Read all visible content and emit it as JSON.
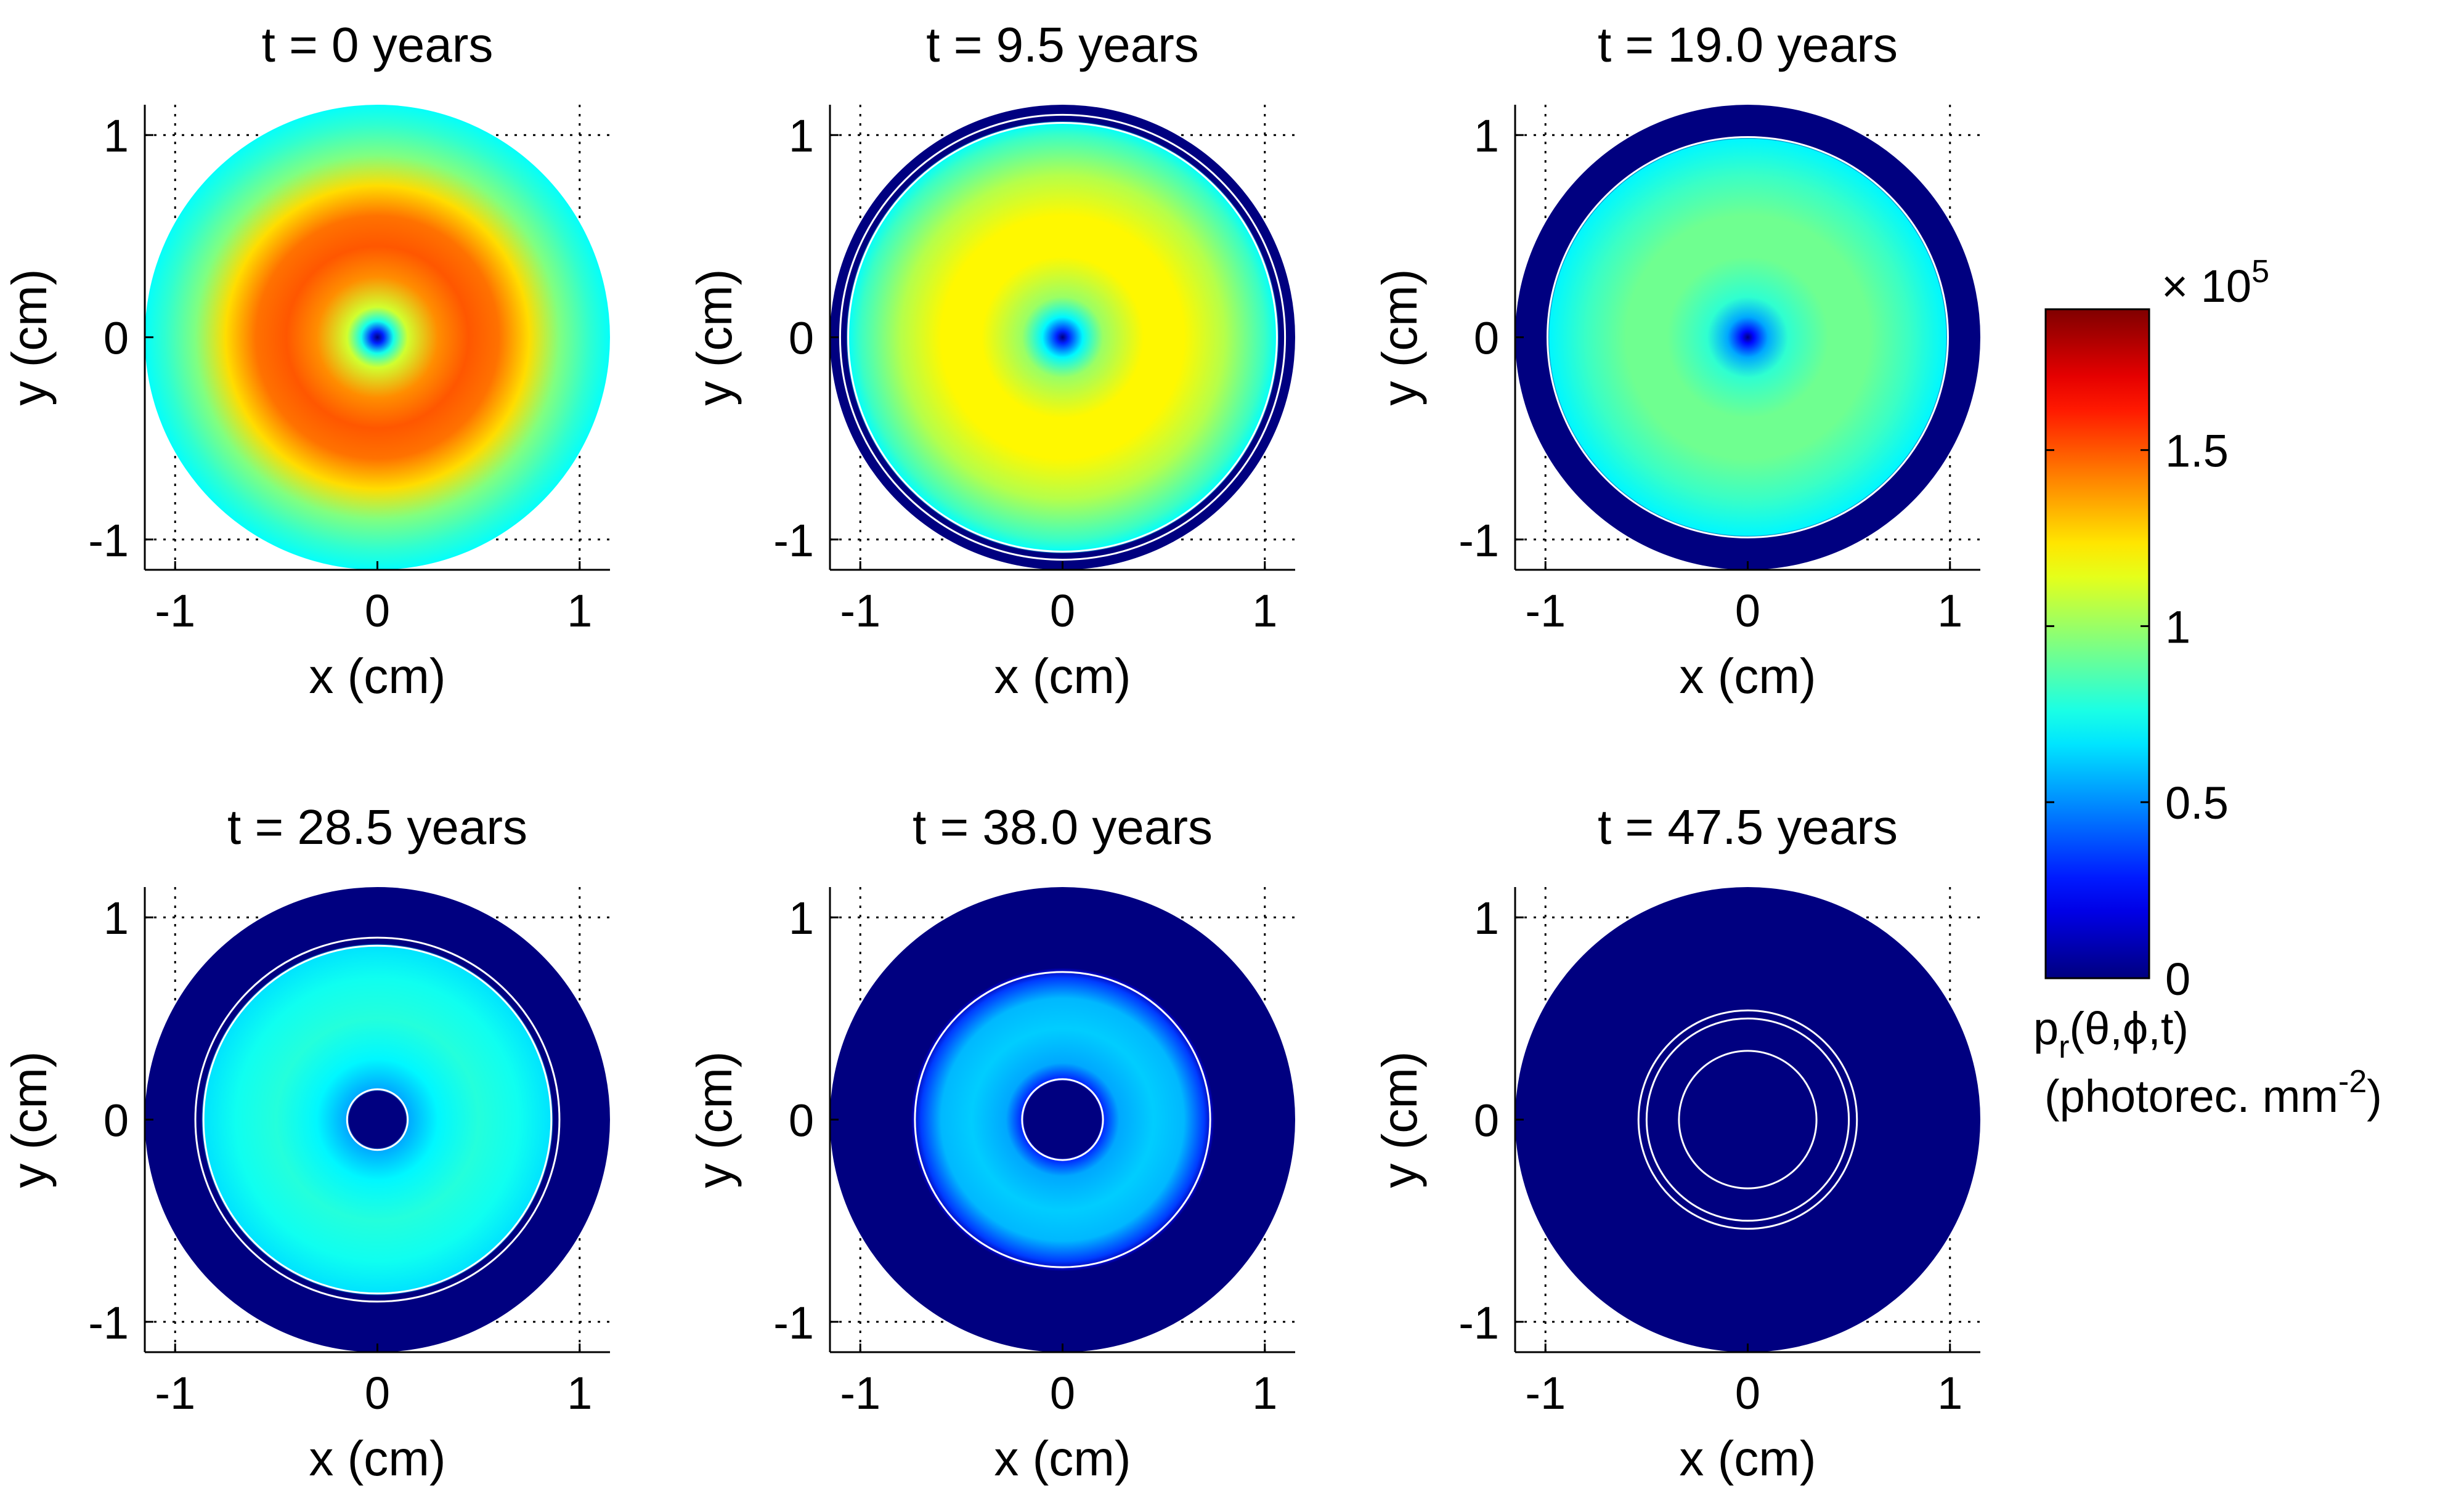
{
  "figure": {
    "colorbar": {
      "multiplier_label": "× 10",
      "multiplier_exponent": "5",
      "tick_labels": [
        "0",
        "0.5",
        "1",
        "1.5"
      ],
      "ticks": [
        0,
        0.5,
        1,
        1.5
      ],
      "range": [
        0,
        1.9
      ],
      "colormap": "jet",
      "label_line1_main": "p",
      "label_line1_sub": "r",
      "label_line1_rest": "(θ,ϕ,t)",
      "label_line2_main": "(photorec. mm",
      "label_line2_sup": "-2",
      "label_line2_end": ")"
    },
    "colors": {
      "background": "#ffffff",
      "outside_disk": "#00008f",
      "contour": "#ffffff"
    }
  },
  "chart_data": [
    {
      "type": "heatmap",
      "title": "t = 0 years",
      "xlabel": "x (cm)",
      "ylabel": "y (cm)",
      "xlim": [
        -1.15,
        1.15
      ],
      "ylim": [
        -1.15,
        1.15
      ],
      "xticks": [
        -1,
        0,
        1
      ],
      "yticks": [
        -1,
        0,
        1
      ],
      "xtick_labels": [
        "-1",
        "0",
        "1"
      ],
      "ytick_labels": [
        "-1",
        "0",
        "1"
      ],
      "grid": true,
      "disk_radius": 1.15,
      "radial_profile": [
        [
          0,
          0.0
        ],
        [
          0.03,
          0.3
        ],
        [
          0.08,
          0.75
        ],
        [
          0.15,
          1.1
        ],
        [
          0.3,
          1.4
        ],
        [
          0.45,
          1.5
        ],
        [
          0.6,
          1.45
        ],
        [
          0.75,
          1.25
        ],
        [
          0.9,
          0.95
        ],
        [
          1.05,
          0.8
        ],
        [
          1.15,
          0.72
        ]
      ],
      "contour_radii": []
    },
    {
      "type": "heatmap",
      "title": "t = 9.5 years",
      "xlabel": "x (cm)",
      "ylabel": "y (cm)",
      "xlim": [
        -1.15,
        1.15
      ],
      "ylim": [
        -1.15,
        1.15
      ],
      "xticks": [
        -1,
        0,
        1
      ],
      "yticks": [
        -1,
        0,
        1
      ],
      "xtick_labels": [
        "-1",
        "0",
        "1"
      ],
      "ytick_labels": [
        "-1",
        "0",
        "1"
      ],
      "grid": true,
      "disk_radius": 1.15,
      "radial_profile": [
        [
          0,
          0.0
        ],
        [
          0.03,
          0.3
        ],
        [
          0.1,
          0.7
        ],
        [
          0.2,
          1.0
        ],
        [
          0.4,
          1.2
        ],
        [
          0.6,
          1.2
        ],
        [
          0.8,
          1.05
        ],
        [
          1.0,
          0.82
        ],
        [
          1.06,
          0.72
        ],
        [
          1.07,
          0.0
        ],
        [
          1.15,
          0.0
        ]
      ],
      "contour_radii": [
        1.06,
        1.1
      ]
    },
    {
      "type": "heatmap",
      "title": "t = 19.0 years",
      "xlabel": "x (cm)",
      "ylabel": "y (cm)",
      "xlim": [
        -1.15,
        1.15
      ],
      "ylim": [
        -1.15,
        1.15
      ],
      "xticks": [
        -1,
        0,
        1
      ],
      "yticks": [
        -1,
        0,
        1
      ],
      "xtick_labels": [
        "-1",
        "0",
        "1"
      ],
      "ytick_labels": [
        "-1",
        "0",
        "1"
      ],
      "grid": true,
      "disk_radius": 1.15,
      "radial_profile": [
        [
          0,
          0.0
        ],
        [
          0.03,
          0.25
        ],
        [
          0.1,
          0.55
        ],
        [
          0.2,
          0.8
        ],
        [
          0.4,
          0.92
        ],
        [
          0.6,
          0.92
        ],
        [
          0.8,
          0.82
        ],
        [
          0.98,
          0.7
        ],
        [
          0.99,
          0.0
        ],
        [
          1.15,
          0.0
        ]
      ],
      "contour_radii": [
        0.99
      ]
    },
    {
      "type": "heatmap",
      "title": "t = 28.5 years",
      "xlabel": "x (cm)",
      "ylabel": "y (cm)",
      "xlim": [
        -1.15,
        1.15
      ],
      "ylim": [
        -1.15,
        1.15
      ],
      "xticks": [
        -1,
        0,
        1
      ],
      "yticks": [
        -1,
        0,
        1
      ],
      "xtick_labels": [
        "-1",
        "0",
        "1"
      ],
      "ytick_labels": [
        "-1",
        "0",
        "1"
      ],
      "grid": true,
      "disk_radius": 1.15,
      "radial_profile": [
        [
          0,
          0.0
        ],
        [
          0.14,
          0.0
        ],
        [
          0.15,
          0.55
        ],
        [
          0.3,
          0.7
        ],
        [
          0.5,
          0.78
        ],
        [
          0.7,
          0.74
        ],
        [
          0.86,
          0.66
        ],
        [
          0.87,
          0.0
        ],
        [
          1.15,
          0.0
        ]
      ],
      "contour_radii": [
        0.15,
        0.86,
        0.9
      ]
    },
    {
      "type": "heatmap",
      "title": "t = 38.0 years",
      "xlabel": "x (cm)",
      "ylabel": "y (cm)",
      "xlim": [
        -1.15,
        1.15
      ],
      "ylim": [
        -1.15,
        1.15
      ],
      "xticks": [
        -1,
        0,
        1
      ],
      "yticks": [
        -1,
        0,
        1
      ],
      "xtick_labels": [
        "-1",
        "0",
        "1"
      ],
      "ytick_labels": [
        "-1",
        "0",
        "1"
      ],
      "grid": true,
      "disk_radius": 1.15,
      "radial_profile": [
        [
          0,
          0.0
        ],
        [
          0.19,
          0.0
        ],
        [
          0.2,
          0.3
        ],
        [
          0.28,
          0.55
        ],
        [
          0.45,
          0.62
        ],
        [
          0.6,
          0.58
        ],
        [
          0.7,
          0.35
        ],
        [
          0.74,
          0.1
        ],
        [
          0.75,
          0.0
        ],
        [
          1.15,
          0.0
        ]
      ],
      "contour_radii": [
        0.2,
        0.73
      ]
    },
    {
      "type": "heatmap",
      "title": "t = 47.5 years",
      "xlabel": "x (cm)",
      "ylabel": "y (cm)",
      "xlim": [
        -1.15,
        1.15
      ],
      "ylim": [
        -1.15,
        1.15
      ],
      "xticks": [
        -1,
        0,
        1
      ],
      "yticks": [
        -1,
        0,
        1
      ],
      "xtick_labels": [
        "-1",
        "0",
        "1"
      ],
      "ytick_labels": [
        "-1",
        "0",
        "1"
      ],
      "grid": true,
      "disk_radius": 1.15,
      "radial_profile": [
        [
          0,
          0.0
        ],
        [
          1.15,
          0.0
        ]
      ],
      "contour_radii": [
        0.34,
        0.5,
        0.54
      ]
    }
  ]
}
